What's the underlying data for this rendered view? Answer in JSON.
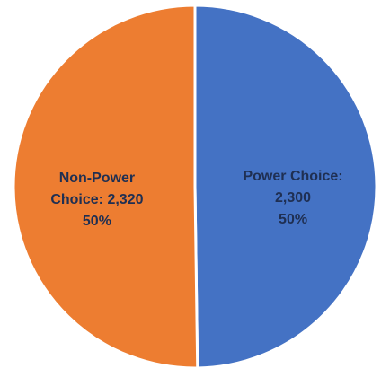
{
  "chart_data": {
    "type": "pie",
    "categories": [
      "Power Choice:",
      "Non-Power Choice:"
    ],
    "values": [
      2300,
      2320
    ],
    "value_labels": [
      "2,300",
      "2,320"
    ],
    "percents": [
      50,
      50
    ],
    "percent_labels": [
      "50%",
      "50%"
    ],
    "colors": [
      "#4472c4",
      "#ed7d31"
    ]
  }
}
